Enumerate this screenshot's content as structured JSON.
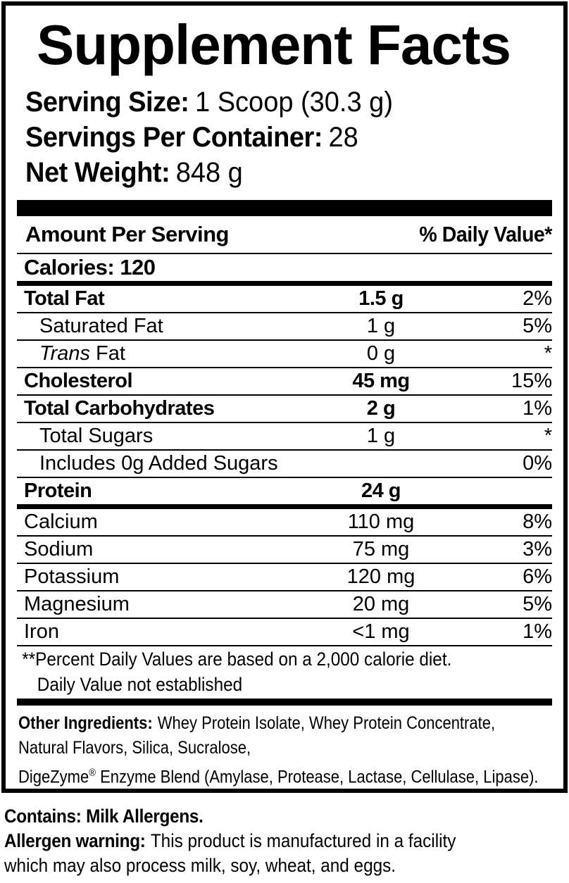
{
  "colors": {
    "ink": "#000000",
    "paper": "#ffffff"
  },
  "header": {
    "title": "Supplement Facts",
    "serving_rows": [
      {
        "label": "Serving Size:",
        "value": "1 Scoop (30.3 g)"
      },
      {
        "label": "Servings Per Container:",
        "value": "28"
      },
      {
        "label": "Net Weight:",
        "value": "848 g"
      }
    ]
  },
  "table": {
    "amount_header": "Amount Per Serving",
    "dv_header": "% Daily Value*",
    "calories": "Calories: 120",
    "rows": [
      {
        "name": "Total Fat",
        "amount": "1.5 g",
        "dv": "2%",
        "style": "bold"
      },
      {
        "name": "Saturated Fat",
        "amount": "1 g",
        "dv": "5%",
        "style": "indent"
      },
      {
        "name_italic": "Trans",
        "name": " Fat",
        "amount": "0 g",
        "dv": "*",
        "style": "indent"
      },
      {
        "name": "Cholesterol",
        "amount": "45 mg",
        "dv": "15%",
        "style": "bold"
      },
      {
        "name": "Total Carbohydrates",
        "amount": "2 g",
        "dv": "1%",
        "style": "bold"
      },
      {
        "name": "Total Sugars",
        "amount": "1 g",
        "dv": "*",
        "style": "indent"
      },
      {
        "name": "Includes 0g Added Sugars",
        "amount": "",
        "dv": "0%",
        "style": "indent"
      },
      {
        "name": "Protein",
        "amount": "24 g",
        "dv": "",
        "style": "bold",
        "divider_after": "thick"
      },
      {
        "name": "Calcium",
        "amount": "110 mg",
        "dv": "8%",
        "style": "plain"
      },
      {
        "name": "Sodium",
        "amount": "75 mg",
        "dv": "3%",
        "style": "plain"
      },
      {
        "name": "Potassium",
        "amount": "120 mg",
        "dv": "6%",
        "style": "plain"
      },
      {
        "name": "Magnesium",
        "amount": "20 mg",
        "dv": "5%",
        "style": "plain"
      },
      {
        "name": "Iron",
        "amount": "<1 mg",
        "dv": "1%",
        "style": "plain"
      }
    ],
    "footnote1": "**Percent Daily Values are based on a 2,000 calorie diet.",
    "footnote2": "Daily Value not established"
  },
  "ingredients": {
    "label": "Other Ingredients:",
    "line1_text": "Whey Protein Isolate, Whey Protein Concentrate,",
    "line2_text": "Natural Flavors, Silica, Sucralose,",
    "line3_brand": "DigeZyme",
    "line3_reg": "®",
    "line3_rest": " Enzyme Blend (Amylase, Protease, Lactase, Cellulase, Lipase)."
  },
  "allergens": {
    "contains": "Contains: Milk Allergens.",
    "warning_label": "Allergen warning:",
    "warning_text1": "This product is manufactured in a facility",
    "warning_text2": "which may also process milk, soy, wheat, and eggs."
  }
}
